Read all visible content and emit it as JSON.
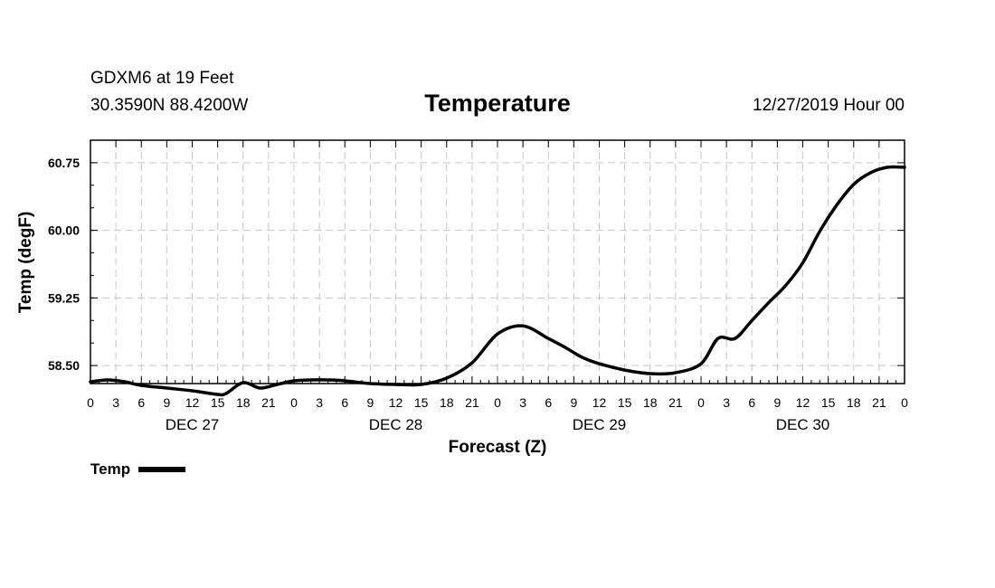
{
  "header": {
    "station": "GDXM6 at 19 Feet",
    "coordinates": "30.3590N 88.4200W",
    "title": "Temperature",
    "datetime": "12/27/2019 Hour 00"
  },
  "legend": {
    "label": "Temp",
    "color": "#000000"
  },
  "chart_data": {
    "type": "line",
    "title": "Temperature",
    "xlabel": "Forecast (Z)",
    "ylabel": "Temp (degF)",
    "ylim": [
      58.3,
      61.0
    ],
    "xlim": [
      0,
      96
    ],
    "x_unit": "hours from 12/27/2019 00Z",
    "grid": true,
    "yticks": [
      58.5,
      59.25,
      60.0,
      60.75
    ],
    "ytick_labels": [
      "58.50",
      "59.25",
      "60.00",
      "60.75"
    ],
    "xtick_hours": [
      0,
      3,
      6,
      9,
      12,
      15,
      18,
      21,
      24,
      27,
      30,
      33,
      36,
      39,
      42,
      45,
      48,
      51,
      54,
      57,
      60,
      63,
      66,
      69,
      72,
      75,
      78,
      81,
      84,
      87,
      90,
      93,
      96
    ],
    "xtick_labels": [
      "0",
      "3",
      "6",
      "9",
      "12",
      "15",
      "18",
      "21",
      "0",
      "3",
      "6",
      "9",
      "12",
      "15",
      "18",
      "21",
      "0",
      "3",
      "6",
      "9",
      "12",
      "15",
      "18",
      "21",
      "0",
      "3",
      "6",
      "9",
      "12",
      "15",
      "18",
      "21",
      "0"
    ],
    "day_labels": [
      {
        "text": "DEC 27",
        "hour": 12
      },
      {
        "text": "DEC 28",
        "hour": 36
      },
      {
        "text": "DEC 29",
        "hour": 60
      },
      {
        "text": "DEC 30",
        "hour": 84
      }
    ],
    "series": [
      {
        "name": "Temp",
        "x": [
          0,
          2,
          4,
          6,
          9,
          12,
          15,
          16,
          18,
          20,
          22,
          24,
          26,
          28,
          30,
          33,
          36,
          39,
          42,
          45,
          48,
          51,
          54,
          56,
          58,
          60,
          63,
          66,
          69,
          72,
          74,
          76,
          78,
          80,
          82,
          84,
          86,
          88,
          90,
          92,
          94,
          96
        ],
        "values": [
          58.32,
          58.34,
          58.32,
          58.28,
          58.25,
          58.22,
          58.18,
          58.19,
          58.31,
          58.25,
          58.29,
          58.33,
          58.34,
          58.34,
          58.33,
          58.3,
          58.29,
          58.29,
          58.36,
          58.53,
          58.85,
          58.94,
          58.8,
          58.7,
          58.59,
          58.52,
          58.45,
          58.41,
          58.42,
          58.52,
          58.8,
          58.8,
          59.0,
          59.2,
          59.39,
          59.64,
          59.99,
          60.28,
          60.51,
          60.64,
          60.7,
          60.7
        ]
      }
    ]
  }
}
